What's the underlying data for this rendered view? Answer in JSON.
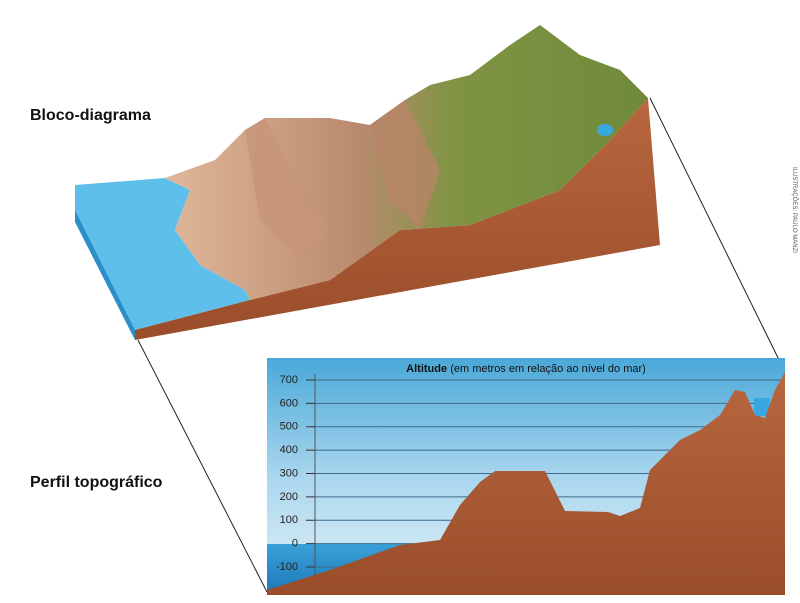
{
  "labels": {
    "block_diagram": "Bloco-diagrama",
    "profile": "Perfil topográfico",
    "credit": "ILUSTRAÇÕES: PAULO MANZI"
  },
  "profile_chart": {
    "axis_title_bold": "Altitude",
    "axis_title_rest": "(em metros em relação ao nível do mar)",
    "yticks": [
      700,
      600,
      500,
      400,
      300,
      200,
      100,
      0,
      -100
    ]
  }
}
